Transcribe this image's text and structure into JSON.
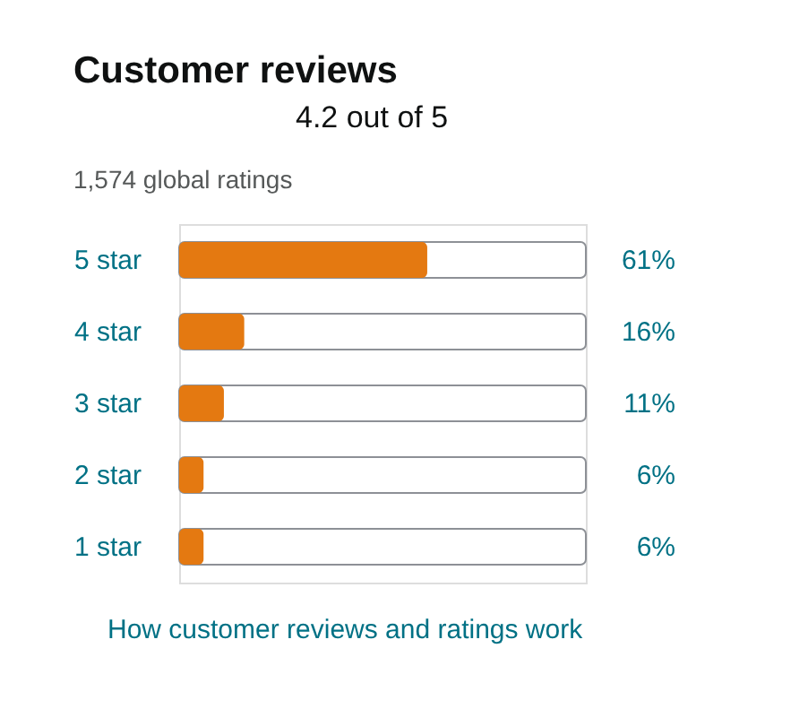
{
  "chart_data": {
    "type": "bar",
    "orientation": "horizontal",
    "title": "Customer reviews",
    "subtitle": "4.2 out of 5",
    "categories": [
      "5 star",
      "4 star",
      "3 star",
      "2 star",
      "1 star"
    ],
    "values": [
      61,
      16,
      11,
      6,
      6
    ],
    "color": "#e47911",
    "value_labels": [
      "61%",
      "16%",
      "11%",
      "6%",
      "6%"
    ],
    "xlim": [
      0,
      100
    ],
    "tick_labels": "y",
    "annotations": [
      "1,574 global ratings",
      "How customer reviews and ratings work"
    ]
  }
}
